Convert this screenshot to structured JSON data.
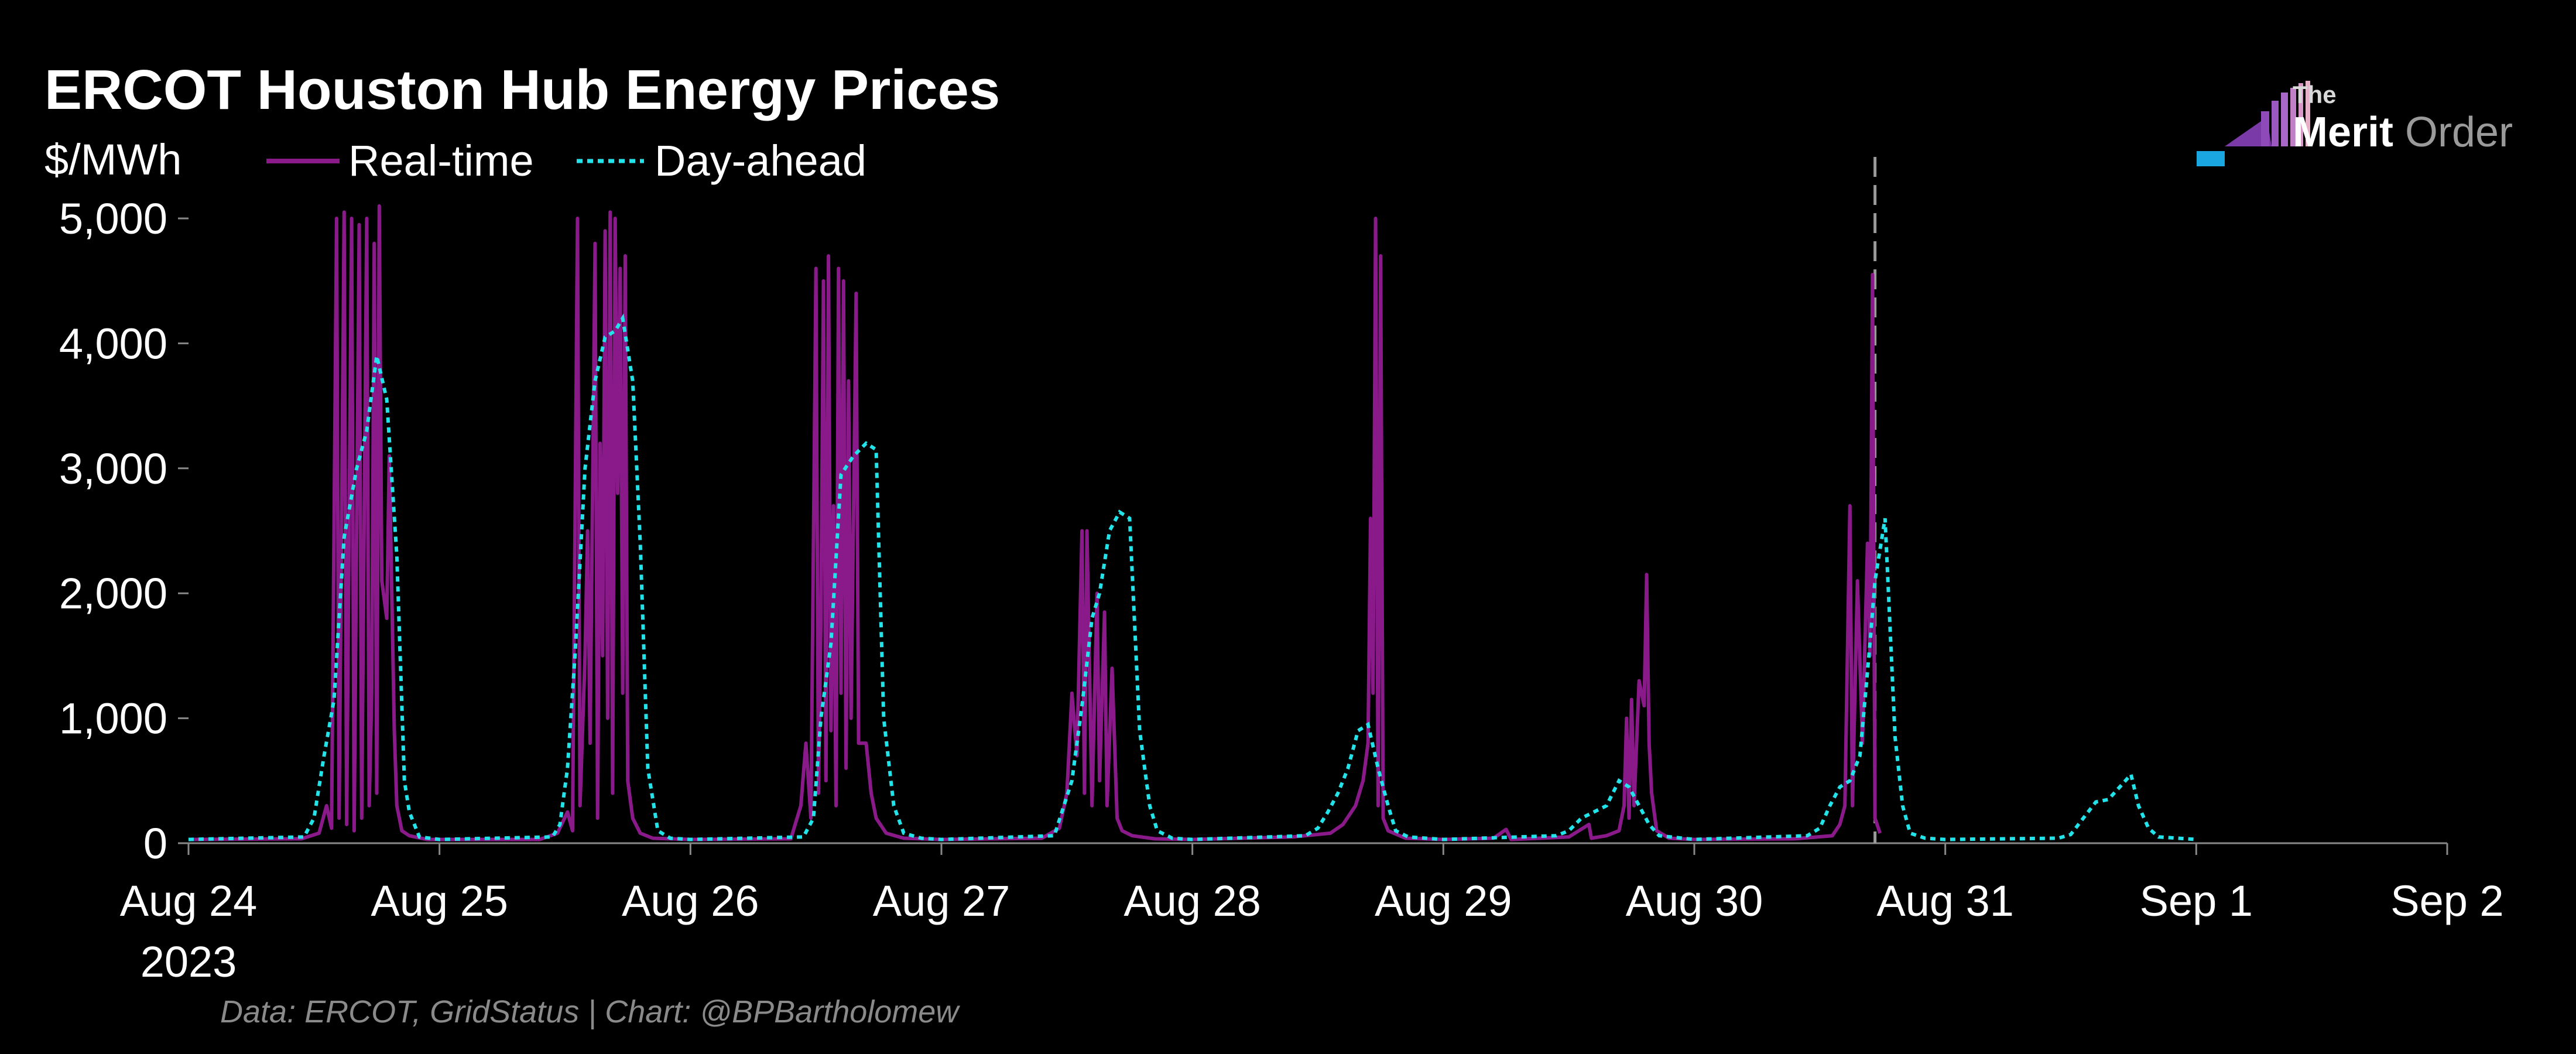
{
  "chart_data": {
    "type": "line",
    "title": "ERCOT Houston Hub Energy Prices",
    "ylabel": "$/MWh",
    "ylim": [
      0,
      5000
    ],
    "xlim_days": [
      0,
      9
    ],
    "y_ticks": [
      {
        "value": 0,
        "label": "0"
      },
      {
        "value": 1000,
        "label": "1,000"
      },
      {
        "value": 2000,
        "label": "2,000"
      },
      {
        "value": 3000,
        "label": "3,000"
      },
      {
        "value": 4000,
        "label": "4,000"
      },
      {
        "value": 5000,
        "label": "5,000"
      }
    ],
    "x_ticks": [
      {
        "day": 0,
        "label": "Aug 24"
      },
      {
        "day": 1,
        "label": "Aug 25"
      },
      {
        "day": 2,
        "label": "Aug 26"
      },
      {
        "day": 3,
        "label": "Aug 27"
      },
      {
        "day": 4,
        "label": "Aug 28"
      },
      {
        "day": 5,
        "label": "Aug 29"
      },
      {
        "day": 6,
        "label": "Aug 30"
      },
      {
        "day": 7,
        "label": "Aug 31"
      },
      {
        "day": 8,
        "label": "Sep 1"
      },
      {
        "day": 9,
        "label": "Sep 2"
      }
    ],
    "year_label": "2023",
    "now_marker_day": 6.72,
    "legend_position": "top-left",
    "series": [
      {
        "name": "Real-time",
        "style": "solid",
        "color": "#8a1a8a",
        "points": [
          [
            0,
            30
          ],
          [
            0.45,
            35
          ],
          [
            0.52,
            80
          ],
          [
            0.55,
            300
          ],
          [
            0.57,
            120
          ],
          [
            0.59,
            5000
          ],
          [
            0.6,
            200
          ],
          [
            0.62,
            5050
          ],
          [
            0.63,
            150
          ],
          [
            0.65,
            5000
          ],
          [
            0.66,
            100
          ],
          [
            0.68,
            4950
          ],
          [
            0.69,
            200
          ],
          [
            0.71,
            5000
          ],
          [
            0.72,
            300
          ],
          [
            0.73,
            1200
          ],
          [
            0.74,
            4800
          ],
          [
            0.75,
            400
          ],
          [
            0.76,
            5100
          ],
          [
            0.77,
            2100
          ],
          [
            0.79,
            1800
          ],
          [
            0.8,
            3100
          ],
          [
            0.81,
            2000
          ],
          [
            0.82,
            900
          ],
          [
            0.83,
            300
          ],
          [
            0.85,
            100
          ],
          [
            0.88,
            60
          ],
          [
            0.95,
            30
          ],
          [
            1.0,
            30
          ],
          [
            1.4,
            30
          ],
          [
            1.47,
            80
          ],
          [
            1.51,
            250
          ],
          [
            1.53,
            100
          ],
          [
            1.55,
            5000
          ],
          [
            1.56,
            300
          ],
          [
            1.58,
            1500
          ],
          [
            1.59,
            2500
          ],
          [
            1.6,
            800
          ],
          [
            1.62,
            4800
          ],
          [
            1.63,
            200
          ],
          [
            1.64,
            3200
          ],
          [
            1.65,
            1500
          ],
          [
            1.66,
            4900
          ],
          [
            1.67,
            1000
          ],
          [
            1.68,
            5050
          ],
          [
            1.69,
            400
          ],
          [
            1.7,
            5000
          ],
          [
            1.71,
            2800
          ],
          [
            1.72,
            4600
          ],
          [
            1.73,
            1200
          ],
          [
            1.74,
            4700
          ],
          [
            1.75,
            500
          ],
          [
            1.77,
            200
          ],
          [
            1.8,
            80
          ],
          [
            1.85,
            40
          ],
          [
            2.0,
            30
          ],
          [
            2.4,
            35
          ],
          [
            2.44,
            300
          ],
          [
            2.46,
            800
          ],
          [
            2.48,
            200
          ],
          [
            2.5,
            4600
          ],
          [
            2.51,
            400
          ],
          [
            2.52,
            1800
          ],
          [
            2.53,
            4500
          ],
          [
            2.54,
            500
          ],
          [
            2.55,
            4700
          ],
          [
            2.56,
            900
          ],
          [
            2.57,
            2700
          ],
          [
            2.58,
            300
          ],
          [
            2.59,
            4600
          ],
          [
            2.6,
            1200
          ],
          [
            2.61,
            4500
          ],
          [
            2.62,
            600
          ],
          [
            2.63,
            3700
          ],
          [
            2.64,
            1000
          ],
          [
            2.66,
            4400
          ],
          [
            2.67,
            800
          ],
          [
            2.7,
            800
          ],
          [
            2.72,
            400
          ],
          [
            2.74,
            200
          ],
          [
            2.78,
            80
          ],
          [
            2.85,
            40
          ],
          [
            3.0,
            30
          ],
          [
            3.4,
            40
          ],
          [
            3.47,
            120
          ],
          [
            3.5,
            400
          ],
          [
            3.52,
            1200
          ],
          [
            3.54,
            700
          ],
          [
            3.56,
            2500
          ],
          [
            3.57,
            400
          ],
          [
            3.58,
            2500
          ],
          [
            3.6,
            300
          ],
          [
            3.62,
            2000
          ],
          [
            3.63,
            500
          ],
          [
            3.65,
            1850
          ],
          [
            3.66,
            300
          ],
          [
            3.68,
            1400
          ],
          [
            3.7,
            200
          ],
          [
            3.72,
            100
          ],
          [
            3.76,
            60
          ],
          [
            3.85,
            35
          ],
          [
            4.0,
            30
          ],
          [
            4.4,
            50
          ],
          [
            4.55,
            80
          ],
          [
            4.6,
            150
          ],
          [
            4.65,
            300
          ],
          [
            4.68,
            500
          ],
          [
            4.7,
            800
          ],
          [
            4.71,
            2600
          ],
          [
            4.72,
            1200
          ],
          [
            4.73,
            5000
          ],
          [
            4.74,
            300
          ],
          [
            4.75,
            4700
          ],
          [
            4.76,
            200
          ],
          [
            4.78,
            100
          ],
          [
            4.85,
            40
          ],
          [
            5.0,
            30
          ],
          [
            5.2,
            40
          ],
          [
            5.25,
            110
          ],
          [
            5.27,
            30
          ],
          [
            5.5,
            50
          ],
          [
            5.58,
            150
          ],
          [
            5.59,
            40
          ],
          [
            5.65,
            60
          ],
          [
            5.7,
            100
          ],
          [
            5.72,
            300
          ],
          [
            5.73,
            1000
          ],
          [
            5.74,
            200
          ],
          [
            5.75,
            1150
          ],
          [
            5.76,
            300
          ],
          [
            5.78,
            1300
          ],
          [
            5.8,
            1100
          ],
          [
            5.81,
            2150
          ],
          [
            5.82,
            800
          ],
          [
            5.83,
            400
          ],
          [
            5.85,
            100
          ],
          [
            5.9,
            40
          ],
          [
            6.0,
            30
          ],
          [
            6.4,
            35
          ],
          [
            6.55,
            60
          ],
          [
            6.58,
            150
          ],
          [
            6.6,
            300
          ],
          [
            6.62,
            2700
          ],
          [
            6.63,
            300
          ],
          [
            6.65,
            2100
          ],
          [
            6.67,
            800
          ],
          [
            6.69,
            2400
          ],
          [
            6.7,
            1500
          ],
          [
            6.71,
            4550
          ],
          [
            6.72,
            200
          ],
          [
            6.74,
            80
          ]
        ]
      },
      {
        "name": "Day-ahead",
        "style": "dotted",
        "color": "#23e3ea",
        "points": [
          [
            0,
            30
          ],
          [
            0.46,
            50
          ],
          [
            0.5,
            200
          ],
          [
            0.54,
            700
          ],
          [
            0.58,
            1150
          ],
          [
            0.62,
            2450
          ],
          [
            0.67,
            3000
          ],
          [
            0.71,
            3300
          ],
          [
            0.75,
            3900
          ],
          [
            0.79,
            3550
          ],
          [
            0.83,
            2300
          ],
          [
            0.86,
            500
          ],
          [
            0.88,
            250
          ],
          [
            0.92,
            50
          ],
          [
            1.0,
            30
          ],
          [
            1.0,
            30
          ],
          [
            1.45,
            50
          ],
          [
            1.48,
            150
          ],
          [
            1.51,
            600
          ],
          [
            1.54,
            1500
          ],
          [
            1.58,
            3000
          ],
          [
            1.62,
            3700
          ],
          [
            1.66,
            4050
          ],
          [
            1.7,
            4100
          ],
          [
            1.73,
            4200
          ],
          [
            1.77,
            3700
          ],
          [
            1.8,
            2400
          ],
          [
            1.83,
            600
          ],
          [
            1.87,
            100
          ],
          [
            1.92,
            40
          ],
          [
            2.0,
            30
          ],
          [
            2.0,
            30
          ],
          [
            2.45,
            50
          ],
          [
            2.49,
            200
          ],
          [
            2.52,
            1000
          ],
          [
            2.56,
            1600
          ],
          [
            2.6,
            2950
          ],
          [
            2.65,
            3100
          ],
          [
            2.7,
            3200
          ],
          [
            2.74,
            3150
          ],
          [
            2.77,
            1000
          ],
          [
            2.81,
            300
          ],
          [
            2.85,
            80
          ],
          [
            2.92,
            40
          ],
          [
            3.0,
            30
          ],
          [
            3.0,
            30
          ],
          [
            3.45,
            60
          ],
          [
            3.48,
            250
          ],
          [
            3.52,
            500
          ],
          [
            3.56,
            1100
          ],
          [
            3.6,
            1800
          ],
          [
            3.63,
            2000
          ],
          [
            3.67,
            2500
          ],
          [
            3.71,
            2650
          ],
          [
            3.75,
            2600
          ],
          [
            3.79,
            900
          ],
          [
            3.83,
            300
          ],
          [
            3.86,
            100
          ],
          [
            3.92,
            40
          ],
          [
            4.0,
            30
          ],
          [
            4.0,
            30
          ],
          [
            4.45,
            60
          ],
          [
            4.5,
            120
          ],
          [
            4.54,
            250
          ],
          [
            4.58,
            400
          ],
          [
            4.62,
            600
          ],
          [
            4.66,
            900
          ],
          [
            4.7,
            950
          ],
          [
            4.74,
            600
          ],
          [
            4.78,
            300
          ],
          [
            4.81,
            100
          ],
          [
            4.86,
            50
          ],
          [
            5.0,
            30
          ],
          [
            5.0,
            30
          ],
          [
            5.45,
            60
          ],
          [
            5.5,
            100
          ],
          [
            5.55,
            200
          ],
          [
            5.6,
            250
          ],
          [
            5.65,
            300
          ],
          [
            5.7,
            500
          ],
          [
            5.74,
            450
          ],
          [
            5.78,
            300
          ],
          [
            5.82,
            150
          ],
          [
            5.86,
            60
          ],
          [
            6.0,
            30
          ],
          [
            6.0,
            30
          ],
          [
            6.45,
            60
          ],
          [
            6.5,
            120
          ],
          [
            6.54,
            300
          ],
          [
            6.58,
            450
          ],
          [
            6.62,
            500
          ],
          [
            6.66,
            700
          ],
          [
            6.7,
            1600
          ],
          [
            6.72,
            2100
          ],
          [
            6.76,
            2600
          ],
          [
            6.8,
            850
          ],
          [
            6.83,
            300
          ],
          [
            6.86,
            80
          ],
          [
            6.92,
            40
          ],
          [
            7.0,
            30
          ],
          [
            7.0,
            30
          ],
          [
            7.45,
            40
          ],
          [
            7.5,
            70
          ],
          [
            7.55,
            200
          ],
          [
            7.6,
            330
          ],
          [
            7.65,
            350
          ],
          [
            7.7,
            460
          ],
          [
            7.74,
            550
          ],
          [
            7.77,
            300
          ],
          [
            7.81,
            120
          ],
          [
            7.85,
            50
          ],
          [
            8.0,
            30
          ]
        ]
      }
    ]
  },
  "source_text": "Data: ERCOT, GridStatus | Chart: @BPBartholomew",
  "logo": {
    "line1": "The",
    "line2a": "Merit",
    "line2b": "Order",
    "color_blue": "#1aa6e0",
    "color_purple": "#8e4ab8",
    "color_pink": "#e0a0c0"
  }
}
